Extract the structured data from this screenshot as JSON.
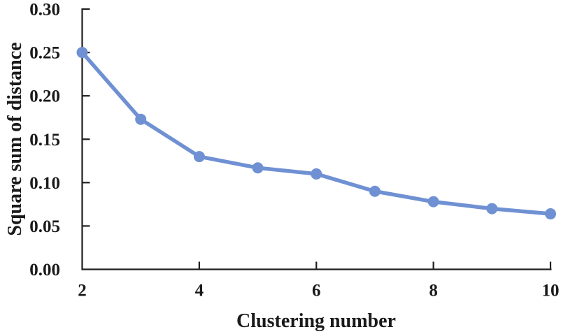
{
  "chart_data": {
    "type": "line",
    "x": [
      2,
      3,
      4,
      5,
      6,
      7,
      8,
      9,
      10
    ],
    "values": [
      0.25,
      0.173,
      0.13,
      0.117,
      0.11,
      0.09,
      0.078,
      0.07,
      0.064
    ],
    "series_name": "Square sum of distance",
    "title": "",
    "xlabel": "Clustering number",
    "ylabel": "Square sum of distance",
    "xlim": [
      2,
      10
    ],
    "ylim": [
      0,
      0.3
    ],
    "xticks": [
      2,
      4,
      6,
      8,
      10
    ],
    "yticks": [
      0.0,
      0.05,
      0.1,
      0.15,
      0.2,
      0.25,
      0.3
    ],
    "ytick_decimals": 2,
    "grid": false,
    "legend_position": "none",
    "line_color": "#6f91d3",
    "marker_color": "#6f91d3",
    "marker_shape": "circle",
    "axis_color": "#1f1f1f"
  }
}
